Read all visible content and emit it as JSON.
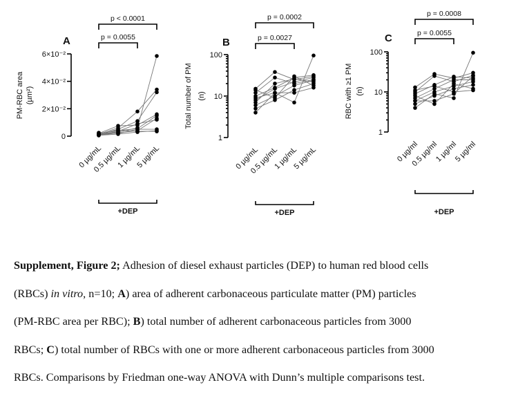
{
  "chart_data": [
    {
      "panel": "A",
      "type": "line",
      "scale": "linear",
      "ylabel_line1": "PM-RBC area",
      "ylabel_line2": "(µm²)",
      "yticks": [
        {
          "value": 0,
          "label": "0"
        },
        {
          "value": 0.02,
          "label": "2×10⁻²"
        },
        {
          "value": 0.04,
          "label": "4×10⁻²"
        },
        {
          "value": 0.06,
          "label": "6×10⁻²"
        }
      ],
      "ylim": [
        0,
        0.06
      ],
      "categories": [
        "0 µg/mL",
        "0.5 µg/mL",
        "1 µg/mL",
        "5 µg/mL"
      ],
      "group_label": "+DEP",
      "comparisons": [
        {
          "from": 0,
          "to": 3,
          "text": "p < 0.0001"
        },
        {
          "from": 0,
          "to": 2,
          "text": "p = 0.0055"
        }
      ],
      "series": [
        {
          "name": "1",
          "values": [
            0.0008,
            0.003,
            0.006,
            0.0585
          ]
        },
        {
          "name": "2",
          "values": [
            0.0015,
            0.006,
            0.018,
            0.034
          ]
        },
        {
          "name": "3",
          "values": [
            0.0012,
            0.005,
            0.011,
            0.032
          ]
        },
        {
          "name": "4",
          "values": [
            0.002,
            0.0075,
            0.008,
            0.016
          ]
        },
        {
          "name": "5",
          "values": [
            0.0018,
            0.004,
            0.0055,
            0.015
          ]
        },
        {
          "name": "6",
          "values": [
            0.0005,
            0.0025,
            0.004,
            0.013
          ]
        },
        {
          "name": "7",
          "values": [
            0.001,
            0.0035,
            0.009,
            0.012
          ]
        },
        {
          "name": "8",
          "values": [
            0.0025,
            0.002,
            0.005,
            0.005
          ]
        },
        {
          "name": "9",
          "values": [
            0.0006,
            0.0015,
            0.003,
            0.004
          ]
        },
        {
          "name": "10",
          "values": [
            0.0014,
            0.0045,
            0.0035,
            0.0035
          ]
        }
      ]
    },
    {
      "panel": "B",
      "type": "line",
      "scale": "log",
      "ylabel_line1": "Total number of PM",
      "ylabel_line2": "(n)",
      "yticks": [
        {
          "value": 1,
          "label": "1"
        },
        {
          "value": 10,
          "label": "10"
        },
        {
          "value": 100,
          "label": "100"
        }
      ],
      "ylim": [
        1,
        100
      ],
      "categories": [
        "0 µg/mL",
        "0.5 µg/mL",
        "1 µg/mL",
        "5 µg/mL"
      ],
      "group_label": "+DEP",
      "comparisons": [
        {
          "from": 0,
          "to": 3,
          "text": "p = 0.0002"
        },
        {
          "from": 0,
          "to": 2,
          "text": "p = 0.0027"
        }
      ],
      "series": [
        {
          "name": "1",
          "values": [
            4,
            12,
            7,
            95
          ]
        },
        {
          "name": "2",
          "values": [
            15,
            38,
            25,
            30
          ]
        },
        {
          "name": "3",
          "values": [
            12,
            28,
            20,
            25
          ]
        },
        {
          "name": "4",
          "values": [
            10,
            16,
            28,
            32
          ]
        },
        {
          "name": "5",
          "values": [
            8,
            15,
            22,
            28
          ]
        },
        {
          "name": "6",
          "values": [
            6,
            10,
            18,
            24
          ]
        },
        {
          "name": "7",
          "values": [
            5,
            8,
            14,
            20
          ]
        },
        {
          "name": "8",
          "values": [
            7,
            20,
            26,
            22
          ]
        },
        {
          "name": "9",
          "values": [
            14,
            9,
            30,
            18
          ]
        },
        {
          "name": "10",
          "values": [
            9,
            12,
            12,
            16
          ]
        }
      ]
    },
    {
      "panel": "C",
      "type": "line",
      "scale": "log",
      "ylabel_line1": "RBC with ≥1 PM",
      "ylabel_line2": "(n)",
      "yticks": [
        {
          "value": 1,
          "label": "1"
        },
        {
          "value": 10,
          "label": "10"
        },
        {
          "value": 100,
          "label": "100"
        }
      ],
      "ylim": [
        1,
        100
      ],
      "categories": [
        "0 µg/ml",
        "0.5 µg/ml",
        "1 µg/ml",
        "5 µg/ml"
      ],
      "group_label": "+DEP",
      "comparisons": [
        {
          "from": 0,
          "to": 3,
          "text": "p = 0.0008"
        },
        {
          "from": 0,
          "to": 2,
          "text": "p = 0.0055"
        }
      ],
      "series": [
        {
          "name": "1",
          "values": [
            4,
            9,
            7,
            95
          ]
        },
        {
          "name": "2",
          "values": [
            13,
            28,
            22,
            30
          ]
        },
        {
          "name": "3",
          "values": [
            10,
            25,
            18,
            26
          ]
        },
        {
          "name": "4",
          "values": [
            9,
            15,
            24,
            22
          ]
        },
        {
          "name": "5",
          "values": [
            7,
            12,
            20,
            20
          ]
        },
        {
          "name": "6",
          "values": [
            6,
            10,
            14,
            18
          ]
        },
        {
          "name": "7",
          "values": [
            5,
            8,
            12,
            15
          ]
        },
        {
          "name": "8",
          "values": [
            8,
            5,
            16,
            12
          ]
        },
        {
          "name": "9",
          "values": [
            11,
            14,
            10,
            11
          ]
        },
        {
          "name": "10",
          "values": [
            6,
            6,
            9,
            25
          ]
        }
      ]
    }
  ],
  "caption": {
    "label": "Supplement, Figure 2;",
    "l1_after_label": " Adhesion of diesel exhaust particles (DEP) to human red blood cells",
    "l2_before_italic": "(RBCs) ",
    "l2_italic": "in vitro",
    "l2_mid": ", n=10; ",
    "l2_bold_A": "A",
    "l2_after_A": ") area of adherent carbonaceous particulate matter (PM) particles",
    "l3_before_B": "(PM-RBC area per RBC); ",
    "l3_bold_B": "B",
    "l3_after_B": ") total number of adherent carbonaceous particles from 3000",
    "l4_before_C": "RBCs; ",
    "l4_bold_C": "C",
    "l4_after_C": ") total number of RBCs with one or more adherent carbonaceous particles from 3000",
    "l5": "RBCs. Comparisons by Friedman one-way ANOVA with Dunn’s multiple comparisons test."
  }
}
